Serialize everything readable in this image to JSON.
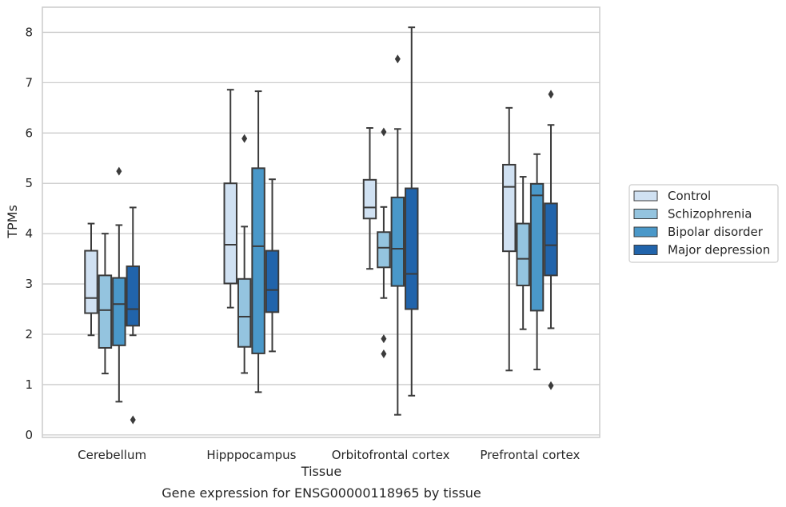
{
  "chart_data": {
    "type": "box",
    "xlabel": "Tissue",
    "ylabel": "TPMs",
    "caption": "Gene expression for ENSG00000118965 by tissue",
    "ylim": [
      -0.05,
      8.5
    ],
    "yticks": [
      0,
      1,
      2,
      3,
      4,
      5,
      6,
      7,
      8
    ],
    "grid": "horizontal",
    "legend_position": "right",
    "categories": [
      "Cerebellum",
      "Hipppocampus",
      "Orbitofrontal cortex",
      "Prefrontal cortex"
    ],
    "series": [
      {
        "name": "Control",
        "color": "#d0e1f2",
        "boxes": [
          {
            "whislo": 1.98,
            "q1": 2.42,
            "med": 2.72,
            "q3": 3.66,
            "whishi": 4.2,
            "fliers": []
          },
          {
            "whislo": 2.53,
            "q1": 3.01,
            "med": 3.78,
            "q3": 5.0,
            "whishi": 6.86,
            "fliers": []
          },
          {
            "whislo": 3.3,
            "q1": 4.3,
            "med": 4.52,
            "q3": 5.07,
            "whishi": 6.1,
            "fliers": []
          },
          {
            "whislo": 1.28,
            "q1": 3.65,
            "med": 4.93,
            "q3": 5.37,
            "whishi": 6.5,
            "fliers": []
          }
        ]
      },
      {
        "name": "Schizophrenia",
        "color": "#94c4df",
        "boxes": [
          {
            "whislo": 1.22,
            "q1": 1.73,
            "med": 2.48,
            "q3": 3.17,
            "whishi": 4.0,
            "fliers": []
          },
          {
            "whislo": 1.23,
            "q1": 1.75,
            "med": 2.35,
            "q3": 3.1,
            "whishi": 4.14,
            "fliers": [
              5.89
            ]
          },
          {
            "whislo": 2.72,
            "q1": 3.33,
            "med": 3.72,
            "q3": 4.03,
            "whishi": 4.53,
            "fliers": [
              6.02,
              1.91,
              1.61
            ]
          },
          {
            "whislo": 2.1,
            "q1": 2.97,
            "med": 3.5,
            "q3": 4.2,
            "whishi": 5.13,
            "fliers": []
          }
        ]
      },
      {
        "name": "Bipolar disorder",
        "color": "#4a98c9",
        "boxes": [
          {
            "whislo": 0.66,
            "q1": 1.78,
            "med": 2.6,
            "q3": 3.12,
            "whishi": 4.17,
            "fliers": [
              5.24
            ]
          },
          {
            "whislo": 0.85,
            "q1": 1.62,
            "med": 3.75,
            "q3": 5.3,
            "whishi": 6.83,
            "fliers": []
          },
          {
            "whislo": 0.4,
            "q1": 2.96,
            "med": 3.7,
            "q3": 4.72,
            "whishi": 6.08,
            "fliers": [
              7.47
            ]
          },
          {
            "whislo": 1.3,
            "q1": 2.47,
            "med": 4.76,
            "q3": 4.99,
            "whishi": 5.58,
            "fliers": []
          }
        ]
      },
      {
        "name": "Major depression",
        "color": "#2164ab",
        "boxes": [
          {
            "whislo": 1.98,
            "q1": 2.17,
            "med": 2.5,
            "q3": 3.35,
            "whishi": 4.52,
            "fliers": [
              0.3
            ]
          },
          {
            "whislo": 1.66,
            "q1": 2.44,
            "med": 2.88,
            "q3": 3.66,
            "whishi": 5.08,
            "fliers": []
          },
          {
            "whislo": 0.78,
            "q1": 2.5,
            "med": 3.2,
            "q3": 4.9,
            "whishi": 8.1,
            "fliers": []
          },
          {
            "whislo": 2.12,
            "q1": 3.17,
            "med": 3.77,
            "q3": 4.6,
            "whishi": 6.16,
            "fliers": [
              6.77,
              0.98
            ]
          }
        ]
      }
    ]
  }
}
